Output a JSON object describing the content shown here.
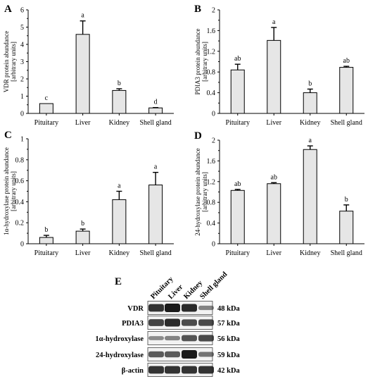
{
  "chart_data": [
    {
      "type": "bar",
      "panel": "A",
      "categories": [
        "Pituitary",
        "Liver",
        "Kidney",
        "Shell gland"
      ],
      "values": [
        0.57,
        4.58,
        1.33,
        0.32
      ],
      "errors": [
        0.0,
        0.78,
        0.1,
        0.02
      ],
      "labels": [
        "c",
        "a",
        "b",
        "d"
      ],
      "ylabel": [
        "VDR protein abundance",
        "[arbitrary units]"
      ],
      "ylim": [
        0,
        6
      ],
      "yticks": [
        "0",
        "1",
        "2",
        "3",
        "4",
        "5",
        "6"
      ]
    },
    {
      "type": "bar",
      "panel": "B",
      "categories": [
        "Pituitary",
        "Liver",
        "Kidney",
        "Shell gland"
      ],
      "values": [
        0.84,
        1.41,
        0.4,
        0.89
      ],
      "errors": [
        0.11,
        0.25,
        0.07,
        0.02
      ],
      "labels": [
        "ab",
        "a",
        "b",
        "ab"
      ],
      "ylabel": [
        "PDIA3 protein abundance",
        "[arbitrary units]"
      ],
      "ylim": [
        0,
        2
      ],
      "yticks": [
        "0",
        "0.4",
        "0.8",
        "1.2",
        "1.6",
        "2"
      ]
    },
    {
      "type": "bar",
      "panel": "C",
      "categories": [
        "Pituitary",
        "Liver",
        "Kidney",
        "Shell gland"
      ],
      "values": [
        0.06,
        0.12,
        0.42,
        0.56
      ],
      "errors": [
        0.02,
        0.02,
        0.08,
        0.12
      ],
      "labels": [
        "b",
        "b",
        "a",
        "a"
      ],
      "ylabel": [
        "1α-hydroxylase protein abundance",
        "[arbitrary units]"
      ],
      "ylim": [
        0,
        1
      ],
      "yticks": [
        "0",
        "0.2",
        "0.4",
        "0.6",
        "0.8",
        "1"
      ]
    },
    {
      "type": "bar",
      "panel": "D",
      "categories": [
        "Pituitary",
        "Liver",
        "Kidney",
        "Shell gland"
      ],
      "values": [
        1.03,
        1.16,
        1.82,
        0.63
      ],
      "errors": [
        0.02,
        0.02,
        0.07,
        0.12
      ],
      "labels": [
        "ab",
        "ab",
        "a",
        "b"
      ],
      "ylabel": [
        "24-hydroxylase protein abundance",
        "[arbitrary units]"
      ],
      "ylim": [
        0,
        2
      ],
      "yticks": [
        "0",
        "0.4",
        "0.8",
        "1.2",
        "1.6",
        "2"
      ]
    }
  ],
  "western_blot": {
    "panel": "E",
    "lanes": [
      "Pituitary",
      "Liver",
      "Kidney",
      "Shell gland"
    ],
    "rows": [
      {
        "name": "VDR",
        "kda": "48 kDa",
        "intensity": [
          0.85,
          1.0,
          0.9,
          0.35
        ]
      },
      {
        "name": "PDIA3",
        "kda": "57 kDa",
        "intensity": [
          0.75,
          0.9,
          0.7,
          0.7
        ]
      },
      {
        "name": "1α-hydroxylase",
        "kda": "56 kDa",
        "intensity": [
          0.3,
          0.35,
          0.65,
          0.7
        ]
      },
      {
        "name": "24-hydroxylase",
        "kda": "59 kDa",
        "intensity": [
          0.6,
          0.6,
          1.0,
          0.45
        ]
      },
      {
        "name": "β-actin",
        "kda": "42 kDa",
        "intensity": [
          0.85,
          0.85,
          0.85,
          0.85
        ]
      }
    ]
  },
  "colors": {
    "bar_fill": "#e6e6e6",
    "bar_stroke": "#000000",
    "band": "#1a1a1a"
  }
}
